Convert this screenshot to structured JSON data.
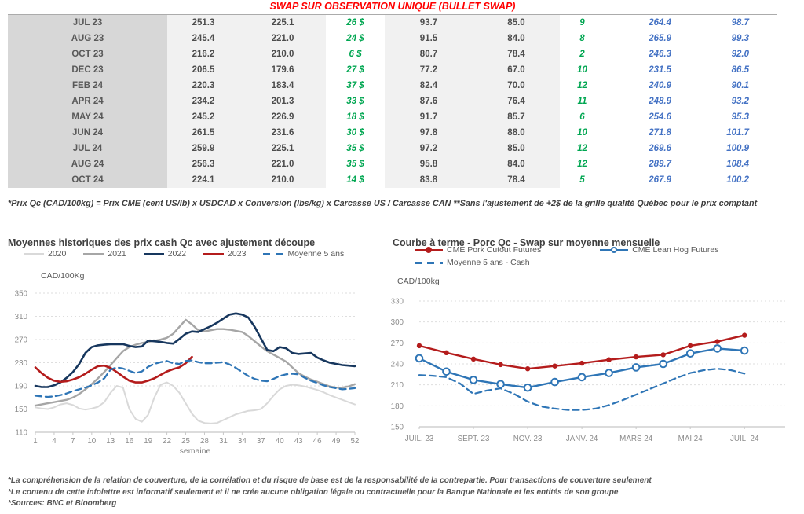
{
  "title": "SWAP SUR OBSERVATION UNIQUE (BULLET SWAP)",
  "table": {
    "rows": [
      [
        "JUL 23",
        "251.3",
        "225.1",
        "26 $",
        "93.7",
        "85.0",
        "9",
        "264.4",
        "98.7"
      ],
      [
        "AUG 23",
        "245.4",
        "221.0",
        "24 $",
        "91.5",
        "84.0",
        "8",
        "265.9",
        "99.3"
      ],
      [
        "OCT 23",
        "216.2",
        "210.0",
        "6 $",
        "80.7",
        "78.4",
        "2",
        "246.3",
        "92.0"
      ],
      [
        "DEC 23",
        "206.5",
        "179.6",
        "27 $",
        "77.2",
        "67.0",
        "10",
        "231.5",
        "86.5"
      ],
      [
        "FEB 24",
        "220.3",
        "183.4",
        "37 $",
        "82.4",
        "70.0",
        "12",
        "240.9",
        "90.1"
      ],
      [
        "APR 24",
        "234.2",
        "201.3",
        "33 $",
        "87.6",
        "76.4",
        "11",
        "248.9",
        "93.2"
      ],
      [
        "MAY 24",
        "245.2",
        "226.9",
        "18 $",
        "91.7",
        "85.7",
        "6",
        "254.6",
        "95.3"
      ],
      [
        "JUN 24",
        "261.5",
        "231.6",
        "30 $",
        "97.8",
        "88.0",
        "10",
        "271.8",
        "101.7"
      ],
      [
        "JUL 24",
        "259.9",
        "225.1",
        "35 $",
        "97.2",
        "85.0",
        "12",
        "269.6",
        "100.9"
      ],
      [
        "AUG 24",
        "256.3",
        "221.0",
        "35 $",
        "95.8",
        "84.0",
        "12",
        "289.7",
        "108.4"
      ],
      [
        "OCT 24",
        "224.1",
        "210.0",
        "14 $",
        "83.8",
        "78.4",
        "5",
        "267.9",
        "100.2"
      ]
    ]
  },
  "table_footnote": "*Prix Qc (CAD/100kg) = Prix CME (cent US/lb) x USDCAD x Conversion (lbs/kg) x Carcasse US / Carcasse CAN **Sans l'ajustement de +2$ de la grille qualité Québec pour le prix comptant",
  "colors": {
    "title_red": "#ff0000",
    "gain_green": "#00a651",
    "futures_blue": "#4472c4",
    "series_2020": "#d9d9d9",
    "series_2021": "#a6a6a6",
    "series_2022": "#17375e",
    "series_2023": "#b41c1c",
    "series_moyenne": "#2e75b6"
  },
  "chart_data": [
    {
      "type": "line",
      "title": "Moyennes historiques des prix cash Qc avec ajustement découpe",
      "y_unit": "CAD/100Kg",
      "xlabel": "semaine",
      "ylim": [
        110,
        350
      ],
      "yticks": [
        350,
        310,
        270,
        230,
        190,
        150,
        110
      ],
      "xlim": [
        1,
        52
      ],
      "xticks": [
        1,
        4,
        7,
        10,
        13,
        16,
        19,
        22,
        25,
        28,
        31,
        34,
        37,
        40,
        43,
        46,
        49,
        52
      ],
      "grid": "dashed-horizontal",
      "legend_position": "top",
      "legend": [
        {
          "label": "2020",
          "color": "#d9d9d9",
          "style": "solid"
        },
        {
          "label": "2021",
          "color": "#a6a6a6",
          "style": "solid"
        },
        {
          "label": "2022",
          "color": "#17375e",
          "style": "solid"
        },
        {
          "label": "2023",
          "color": "#b41c1c",
          "style": "solid"
        },
        {
          "label": "Moyenne 5 ans",
          "color": "#2e75b6",
          "style": "dashed"
        }
      ],
      "series": [
        {
          "name": "2020",
          "color": "#d9d9d9",
          "width": 2,
          "values": [
            153,
            151,
            150,
            153,
            158,
            160,
            157,
            151,
            149,
            151,
            154,
            162,
            178,
            190,
            187,
            150,
            133,
            128,
            140,
            170,
            192,
            196,
            190,
            178,
            160,
            142,
            130,
            126,
            125,
            126,
            131,
            136,
            141,
            144,
            147,
            148,
            150,
            160,
            173,
            184,
            190,
            192,
            191,
            189,
            186,
            183,
            179,
            174,
            170,
            166,
            162,
            158
          ]
        },
        {
          "name": "2021",
          "color": "#a6a6a6",
          "width": 2.4,
          "values": [
            156,
            158,
            160,
            162,
            164,
            166,
            170,
            176,
            184,
            193,
            203,
            214,
            226,
            238,
            250,
            257,
            261,
            264,
            266,
            268,
            270,
            273,
            280,
            292,
            304,
            296,
            286,
            284,
            286,
            288,
            288,
            287,
            285,
            283,
            276,
            267,
            258,
            250,
            244,
            238,
            232,
            222,
            212,
            206,
            201,
            197,
            193,
            189,
            187,
            187,
            189,
            193
          ]
        },
        {
          "name": "2022",
          "color": "#17375e",
          "width": 2.6,
          "values": [
            190,
            188,
            188,
            191,
            196,
            204,
            214,
            228,
            247,
            257,
            260,
            261,
            262,
            262,
            262,
            259,
            257,
            258,
            268,
            267,
            266,
            264,
            263,
            271,
            280,
            284,
            283,
            288,
            293,
            299,
            306,
            313,
            315,
            313,
            308,
            292,
            272,
            252,
            250,
            257,
            255,
            247,
            245,
            246,
            247,
            239,
            234,
            230,
            228,
            226,
            225,
            224
          ]
        },
        {
          "name": "2023",
          "color": "#b41c1c",
          "width": 2.6,
          "values": [
            222,
            212,
            204,
            199,
            197,
            198,
            201,
            205,
            211,
            218,
            224,
            225,
            221,
            214,
            206,
            199,
            196,
            196,
            199,
            203,
            209,
            215,
            219,
            222,
            229,
            240
          ]
        },
        {
          "name": "Moyenne 5 ans",
          "color": "#2e75b6",
          "width": 2.3,
          "dash": true,
          "values": [
            173,
            172,
            171,
            172,
            174,
            177,
            181,
            184,
            187,
            191,
            196,
            203,
            218,
            222,
            220,
            216,
            212,
            215,
            223,
            228,
            231,
            233,
            229,
            228,
            233,
            234,
            231,
            229,
            229,
            230,
            231,
            227,
            221,
            214,
            207,
            202,
            199,
            198,
            202,
            207,
            210,
            211,
            210,
            204,
            199,
            195,
            191,
            188,
            186,
            184,
            185,
            186
          ]
        }
      ]
    },
    {
      "type": "line",
      "title": "Courbe à terme - Porc Qc - Swap sur moyenne mensuelle",
      "y_unit": "CAD/100kg",
      "ylim": [
        150,
        330
      ],
      "yticks": [
        330,
        300,
        270,
        240,
        210,
        180,
        150
      ],
      "xlim": [
        0,
        13.5
      ],
      "xticks": [
        {
          "pos": 0,
          "label": "JUIL. 23"
        },
        {
          "pos": 2,
          "label": "SEPT. 23"
        },
        {
          "pos": 4,
          "label": "NOV. 23"
        },
        {
          "pos": 6,
          "label": "JANV. 24"
        },
        {
          "pos": 8,
          "label": "MARS 24"
        },
        {
          "pos": 10,
          "label": "MAI 24"
        },
        {
          "pos": 12,
          "label": "JUIL. 24"
        }
      ],
      "grid": "dashed-horizontal",
      "legend_position": "top",
      "legend": [
        {
          "label": "CME Pork Cutout Futures",
          "color": "#b41c1c",
          "style": "solid",
          "marker": "filled"
        },
        {
          "label": "CME Lean Hog Futures",
          "color": "#2e75b6",
          "style": "solid",
          "marker": "open"
        },
        {
          "label": "Moyenne 5 ans - Cash",
          "color": "#2e75b6",
          "style": "dashed"
        }
      ],
      "series": [
        {
          "name": "CME Pork Cutout Futures",
          "color": "#b41c1c",
          "width": 2.4,
          "marker": "filled",
          "values": [
            266,
            256,
            247,
            239,
            233,
            237,
            241,
            246,
            250,
            253,
            266,
            272,
            281
          ]
        },
        {
          "name": "CME Lean Hog Futures",
          "color": "#2e75b6",
          "width": 2.4,
          "marker": "open",
          "values": [
            248,
            229,
            217,
            211,
            206,
            214,
            221,
            227,
            235,
            240,
            255,
            262,
            259
          ]
        },
        {
          "name": "Moyenne 5 ans - Cash",
          "color": "#2e75b6",
          "width": 2.2,
          "dash": true,
          "step": 0.5,
          "values": [
            224,
            223,
            221,
            212,
            197,
            202,
            205,
            197,
            186,
            179,
            176,
            174,
            174,
            176,
            181,
            188,
            196,
            204,
            212,
            220,
            227,
            231,
            233,
            231,
            226
          ]
        }
      ]
    }
  ],
  "footer_notes": [
    "*La compréhension de la relation de couverture, de la corrélation et du risque de base est de la responsabilité de la contrepartie. Pour transactions de couverture seulement",
    "*Le contenu de cette infolettre est informatif seulement et il ne crée aucune obligation légale ou contractuelle pour la Banque Nationale et les entités de son groupe",
    "*Sources: BNC et Bloomberg"
  ]
}
